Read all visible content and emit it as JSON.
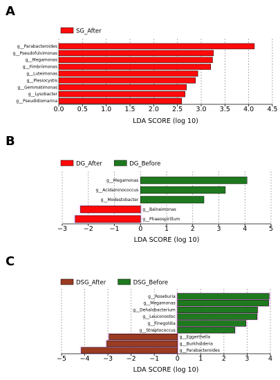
{
  "figure": {
    "panel_letters": [
      "A",
      "B",
      "C"
    ]
  },
  "colors": {
    "red": "#ff0a0a",
    "green": "#1f7a1f",
    "dark_red": "#9a3b22",
    "highlight": "#ff80ff",
    "grid": "#8c8c8c"
  },
  "chart_data": [
    {
      "type": "bar",
      "orientation": "horizontal",
      "panel": "A",
      "xlabel": "LDA SCORE (log 10)",
      "xlim": [
        0,
        4.5
      ],
      "xticks": [
        0.0,
        0.5,
        1.0,
        1.5,
        2.0,
        2.5,
        3.0,
        3.5,
        4.0,
        4.5
      ],
      "xtick_labels": [
        "0.0",
        "0.5",
        "1.0",
        "1.5",
        "2.0",
        "2.5",
        "3.0",
        "3.5",
        "4.0",
        "4.5"
      ],
      "grid": "vertical-dashed",
      "legend": [
        {
          "name": "SG_After",
          "color": "#ff0a0a"
        }
      ],
      "legend_position": "top-left",
      "bars": [
        {
          "label": "g__Parabacteroides",
          "value": 4.12,
          "group": "SG_After"
        },
        {
          "label": "g__Pseudofulvimonas",
          "value": 3.26,
          "group": "SG_After"
        },
        {
          "label": "g__Megamonas",
          "value": 3.24,
          "group": "SG_After"
        },
        {
          "label": "g__Fimbriimonas",
          "value": 3.2,
          "group": "SG_After"
        },
        {
          "label": "g__Luteimonas",
          "value": 2.93,
          "group": "SG_After"
        },
        {
          "label": "g__Plesiocystis",
          "value": 2.88,
          "group": "SG_After"
        },
        {
          "label": "g__Gemmatimonas",
          "value": 2.69,
          "group": "SG_After"
        },
        {
          "label": "g__Lysobacter",
          "value": 2.66,
          "group": "SG_After"
        },
        {
          "label": "g__Pseudidiomarina",
          "value": 2.59,
          "group": "SG_After"
        }
      ]
    },
    {
      "type": "bar",
      "orientation": "horizontal",
      "panel": "B",
      "xlabel": "LDA SCORE (log 10)",
      "xlim": [
        -3,
        5
      ],
      "xticks": [
        -3,
        -2,
        -1,
        0,
        1,
        2,
        3,
        4,
        5
      ],
      "xtick_labels": [
        "−3",
        "−2",
        "−1",
        "0",
        "1",
        "2",
        "3",
        "4",
        "5"
      ],
      "grid": "vertical-dashed",
      "legend": [
        {
          "name": "DG_After",
          "color": "#ff0a0a"
        },
        {
          "name": "DG_Before",
          "color": "#1f7a1f"
        }
      ],
      "legend_position": "top-left",
      "bars": [
        {
          "label": "g__Megamonas",
          "value": 4.08,
          "group": "DG_Before"
        },
        {
          "label": "g__Acidaminococcus",
          "value": 3.25,
          "group": "DG_Before"
        },
        {
          "label": "g__Modestobacter",
          "value": 2.43,
          "group": "DG_Before"
        },
        {
          "label": "g__Balneimonas",
          "value": -2.3,
          "group": "DG_After"
        },
        {
          "label": "g__Phaeospirillum",
          "value": -2.5,
          "group": "DG_After"
        }
      ]
    },
    {
      "type": "bar",
      "orientation": "horizontal",
      "panel": "C",
      "xlabel": "LDA SCORE (log 10)",
      "xlim": [
        -5,
        4
      ],
      "xticks": [
        -5,
        -4,
        -3,
        -2,
        -1,
        0,
        1,
        2,
        3,
        4
      ],
      "xtick_labels": [
        "−5",
        "−4",
        "−3",
        "−2",
        "−1",
        "0",
        "1",
        "2",
        "3",
        "4"
      ],
      "grid": "vertical-dashed",
      "legend": [
        {
          "name": "DSG_After",
          "color": "#9a3b22"
        },
        {
          "name": "DSG_Before",
          "color": "#1f7a1f"
        }
      ],
      "legend_position": "top-left",
      "bars": [
        {
          "label": "g__Roseburia",
          "value": 3.95,
          "group": "DSG_Before"
        },
        {
          "label": "g__Megamonas",
          "value": 3.93,
          "group": "DSG_Before"
        },
        {
          "label": "g__Dehalobacterium",
          "value": 3.45,
          "group": "DSG_Before"
        },
        {
          "label": "g__Leuconostoc",
          "value": 3.43,
          "group": "DSG_Before"
        },
        {
          "label": "g__Finegoldia",
          "value": 2.95,
          "group": "DSG_Before"
        },
        {
          "label": "g__Streptococcus",
          "value": 2.47,
          "group": "DSG_Before"
        },
        {
          "label": "g__Eggerthella",
          "value": -2.95,
          "group": "DSG_After"
        },
        {
          "label": "g__Burkholderia",
          "value": -3.05,
          "group": "DSG_After"
        },
        {
          "label": "g__Parabacteroides",
          "value": -4.15,
          "group": "DSG_After"
        }
      ]
    }
  ]
}
